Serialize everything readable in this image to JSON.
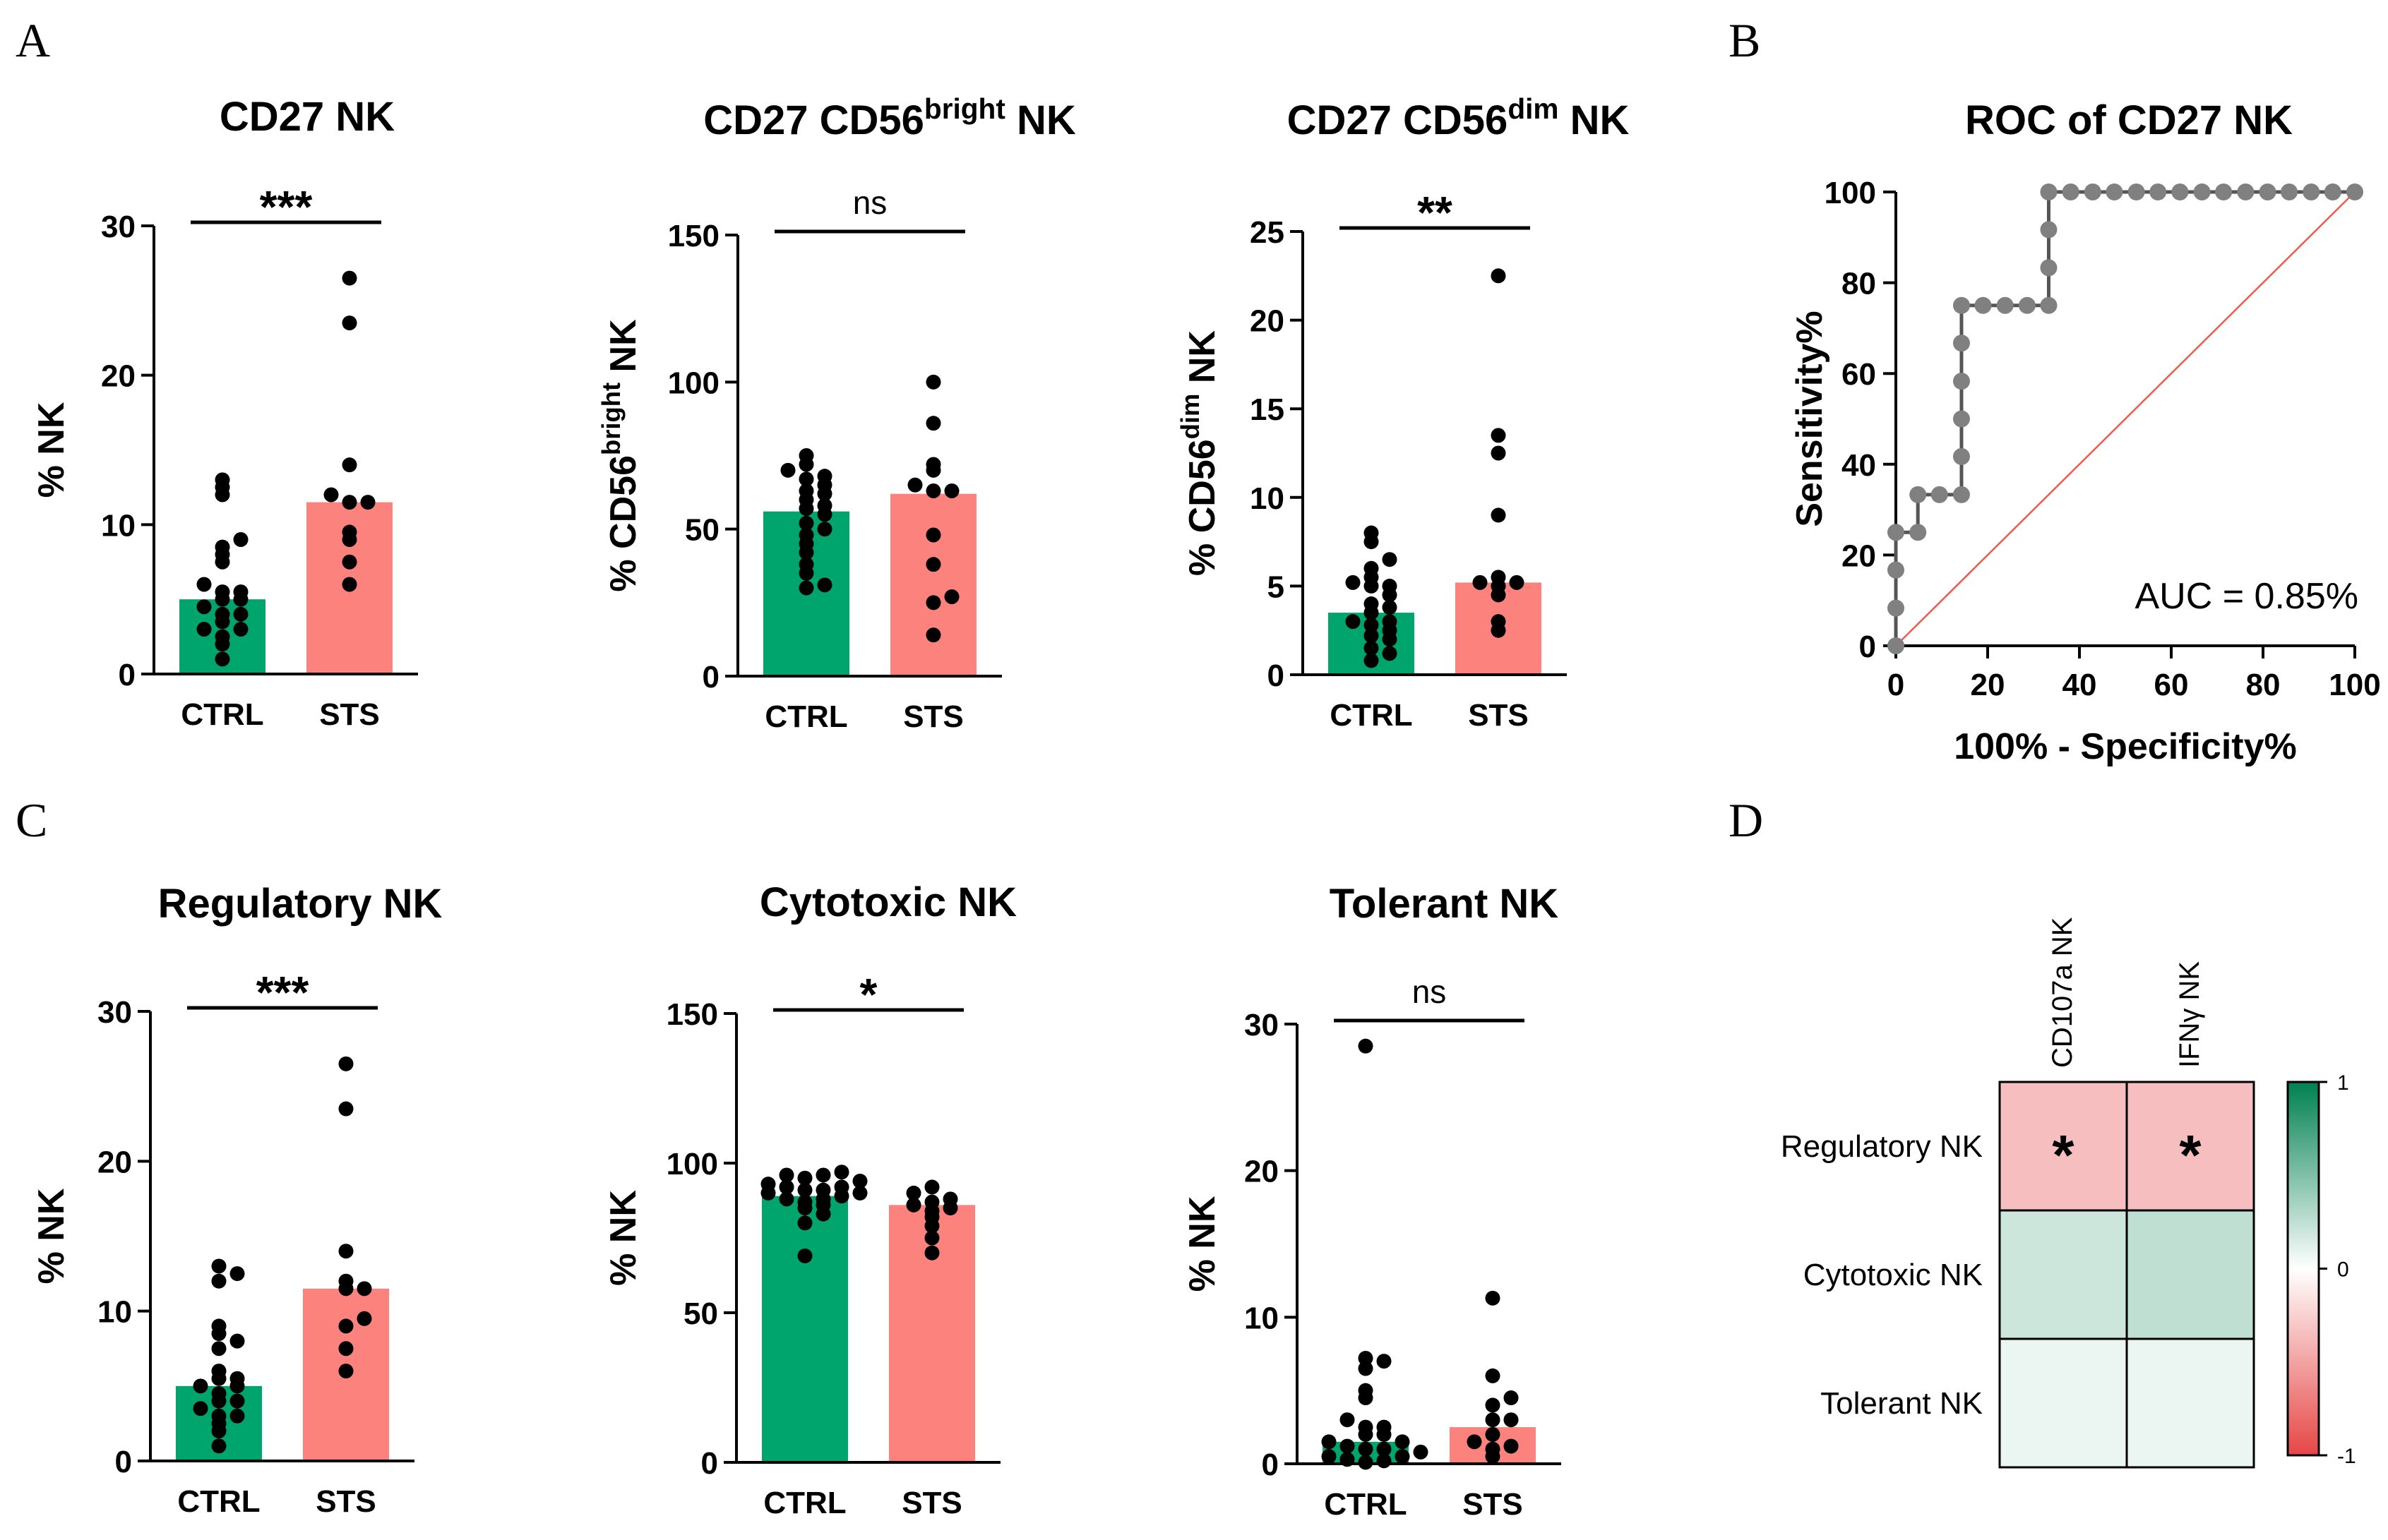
{
  "panel_labels": [
    "A",
    "B",
    "C",
    "D"
  ],
  "colors": {
    "ctrl": "#00a56e",
    "sts": "#fb827d",
    "dots": "#000000",
    "roc_line": "#555555",
    "roc_marker": "#808080",
    "ref_line": "#f05a4a"
  },
  "chart_data": [
    {
      "type": "bar",
      "id": "a1",
      "title": "CD27 NK",
      "ylabel": "% NK",
      "ylim": [
        0,
        30
      ],
      "yticks": [
        0,
        10,
        20,
        30
      ],
      "categories": [
        "CTRL",
        "STS"
      ],
      "values": [
        5,
        11.5
      ],
      "points": [
        [
          1,
          2,
          2.5,
          3,
          3,
          3.5,
          4,
          4,
          4.5,
          5,
          5,
          5.5,
          5.5,
          6,
          7.5,
          8,
          8.5,
          9,
          12,
          12.5,
          13
        ],
        [
          6,
          7.5,
          9,
          9.5,
          11.5,
          11.5,
          12,
          14,
          23.5,
          26.5
        ]
      ],
      "significance": "***"
    },
    {
      "type": "bar",
      "id": "a2",
      "title": "CD27 CD56",
      "title_sup": "bright",
      "title_suffix": " NK",
      "ylabel": "% CD56",
      "ylabel_sup": "bright",
      "ylabel_suffix": " NK",
      "ylim": [
        0,
        150
      ],
      "yticks": [
        0,
        50,
        100,
        150
      ],
      "categories": [
        "CTRL",
        "STS"
      ],
      "values": [
        56,
        62
      ],
      "points": [
        [
          30,
          31,
          35,
          38,
          42,
          45,
          48,
          50,
          52,
          55,
          57,
          58,
          60,
          62,
          63,
          65,
          67,
          68,
          70,
          72,
          75
        ],
        [
          14,
          25,
          27,
          38,
          48,
          63,
          63,
          65,
          70,
          72,
          86,
          100
        ]
      ],
      "significance": "ns"
    },
    {
      "type": "bar",
      "id": "a3",
      "title": "CD27 CD56",
      "title_sup": "dim",
      "title_suffix": " NK",
      "ylabel": "% CD56",
      "ylabel_sup": "dim",
      "ylabel_suffix": " NK",
      "ylim": [
        0,
        25
      ],
      "yticks": [
        0,
        5,
        10,
        15,
        20,
        25
      ],
      "categories": [
        "CTRL",
        "STS"
      ],
      "values": [
        3.5,
        5.2
      ],
      "points": [
        [
          0.8,
          1.2,
          1.5,
          2,
          2.2,
          2.5,
          2.8,
          3,
          3,
          3.5,
          3.8,
          4,
          4.5,
          5,
          5,
          5.2,
          5.5,
          6,
          6.5,
          7.5,
          8
        ],
        [
          2.5,
          3,
          4.5,
          5,
          5.2,
          5.2,
          5.5,
          9,
          12.5,
          13.5,
          22.5
        ]
      ],
      "significance": "**"
    },
    {
      "type": "line",
      "id": "b",
      "title": "ROC of CD27 NK",
      "xlabel": "100% - Specificity%",
      "ylabel": "Sensitivity%",
      "xlim": [
        0,
        100
      ],
      "ylim": [
        0,
        100
      ],
      "xticks": [
        0,
        20,
        40,
        60,
        80,
        100
      ],
      "yticks": [
        0,
        20,
        40,
        60,
        80,
        100
      ],
      "x": [
        0,
        0,
        0,
        0,
        4.8,
        4.8,
        9.5,
        14.3,
        14.3,
        14.3,
        14.3,
        14.3,
        14.3,
        19,
        23.8,
        28.6,
        33.3,
        33.3,
        33.3,
        33.3,
        38.1,
        42.9,
        47.6,
        52.4,
        57.1,
        61.9,
        66.7,
        71.4,
        76.2,
        81,
        85.7,
        90.5,
        95.2,
        100
      ],
      "y": [
        0,
        8.3,
        16.7,
        25,
        25,
        33.3,
        33.3,
        33.3,
        41.7,
        50,
        58.3,
        66.7,
        75,
        75,
        75,
        75,
        75,
        83.3,
        91.7,
        100,
        100,
        100,
        100,
        100,
        100,
        100,
        100,
        100,
        100,
        100,
        100,
        100,
        100,
        100
      ],
      "annotation": "AUC = 0.85%"
    },
    {
      "type": "bar",
      "id": "c1",
      "title": "Regulatory NK",
      "ylabel": "% NK",
      "ylim": [
        0,
        30
      ],
      "yticks": [
        0,
        10,
        20,
        30
      ],
      "categories": [
        "CTRL",
        "STS"
      ],
      "values": [
        5,
        11.5
      ],
      "points": [
        [
          1,
          2,
          2.5,
          3,
          3,
          3.5,
          4,
          4,
          4.5,
          5,
          5,
          5.5,
          5.5,
          6,
          7.5,
          8,
          8.5,
          9,
          12,
          12.5,
          13
        ],
        [
          6,
          7.5,
          9,
          9.5,
          11.5,
          11.5,
          12,
          14,
          23.5,
          26.5
        ]
      ],
      "significance": "***"
    },
    {
      "type": "bar",
      "id": "c2",
      "title": "Cytotoxic NK",
      "ylabel": "% NK",
      "ylim": [
        0,
        150
      ],
      "yticks": [
        0,
        50,
        100,
        150
      ],
      "categories": [
        "CTRL",
        "STS"
      ],
      "values": [
        89,
        86
      ],
      "points": [
        [
          69,
          80,
          83,
          85,
          86,
          87,
          88,
          88,
          89,
          90,
          90,
          91,
          91,
          92,
          92,
          93,
          94,
          95,
          96,
          96,
          97
        ],
        [
          70,
          75,
          79,
          82,
          84,
          85,
          86,
          87,
          88,
          90,
          92
        ]
      ],
      "significance": "*"
    },
    {
      "type": "bar",
      "id": "c3",
      "title": "Tolerant NK",
      "ylabel": "% NK",
      "ylim": [
        0,
        30
      ],
      "yticks": [
        0,
        10,
        20,
        30
      ],
      "categories": [
        "CTRL",
        "STS"
      ],
      "values": [
        1.5,
        2.5
      ],
      "points": [
        [
          0.1,
          0.2,
          0.3,
          0.5,
          0.5,
          0.8,
          1,
          1,
          1.2,
          1.5,
          1.5,
          2,
          2,
          2.5,
          2.5,
          3,
          4.5,
          5,
          6.5,
          7,
          7.2,
          28.5
        ],
        [
          0.5,
          1,
          1.2,
          1.5,
          2,
          3,
          3,
          4,
          4.5,
          6,
          11.3
        ]
      ],
      "significance": "ns"
    },
    {
      "type": "heatmap",
      "id": "d",
      "rows": [
        "Regulatory NK",
        "Cytotoxic NK",
        "Tolerant NK"
      ],
      "columns": [
        "CD107a NK",
        "IFNγ NK"
      ],
      "values": [
        [
          -0.35,
          -0.35
        ],
        [
          0.2,
          0.25
        ],
        [
          0.08,
          0.08
        ]
      ],
      "significance": [
        [
          "*",
          "*"
        ],
        [
          "",
          ""
        ],
        [
          "",
          ""
        ]
      ],
      "scale": [
        -1,
        1
      ],
      "scale_ticks": [
        "1",
        "0",
        "-1"
      ]
    }
  ]
}
